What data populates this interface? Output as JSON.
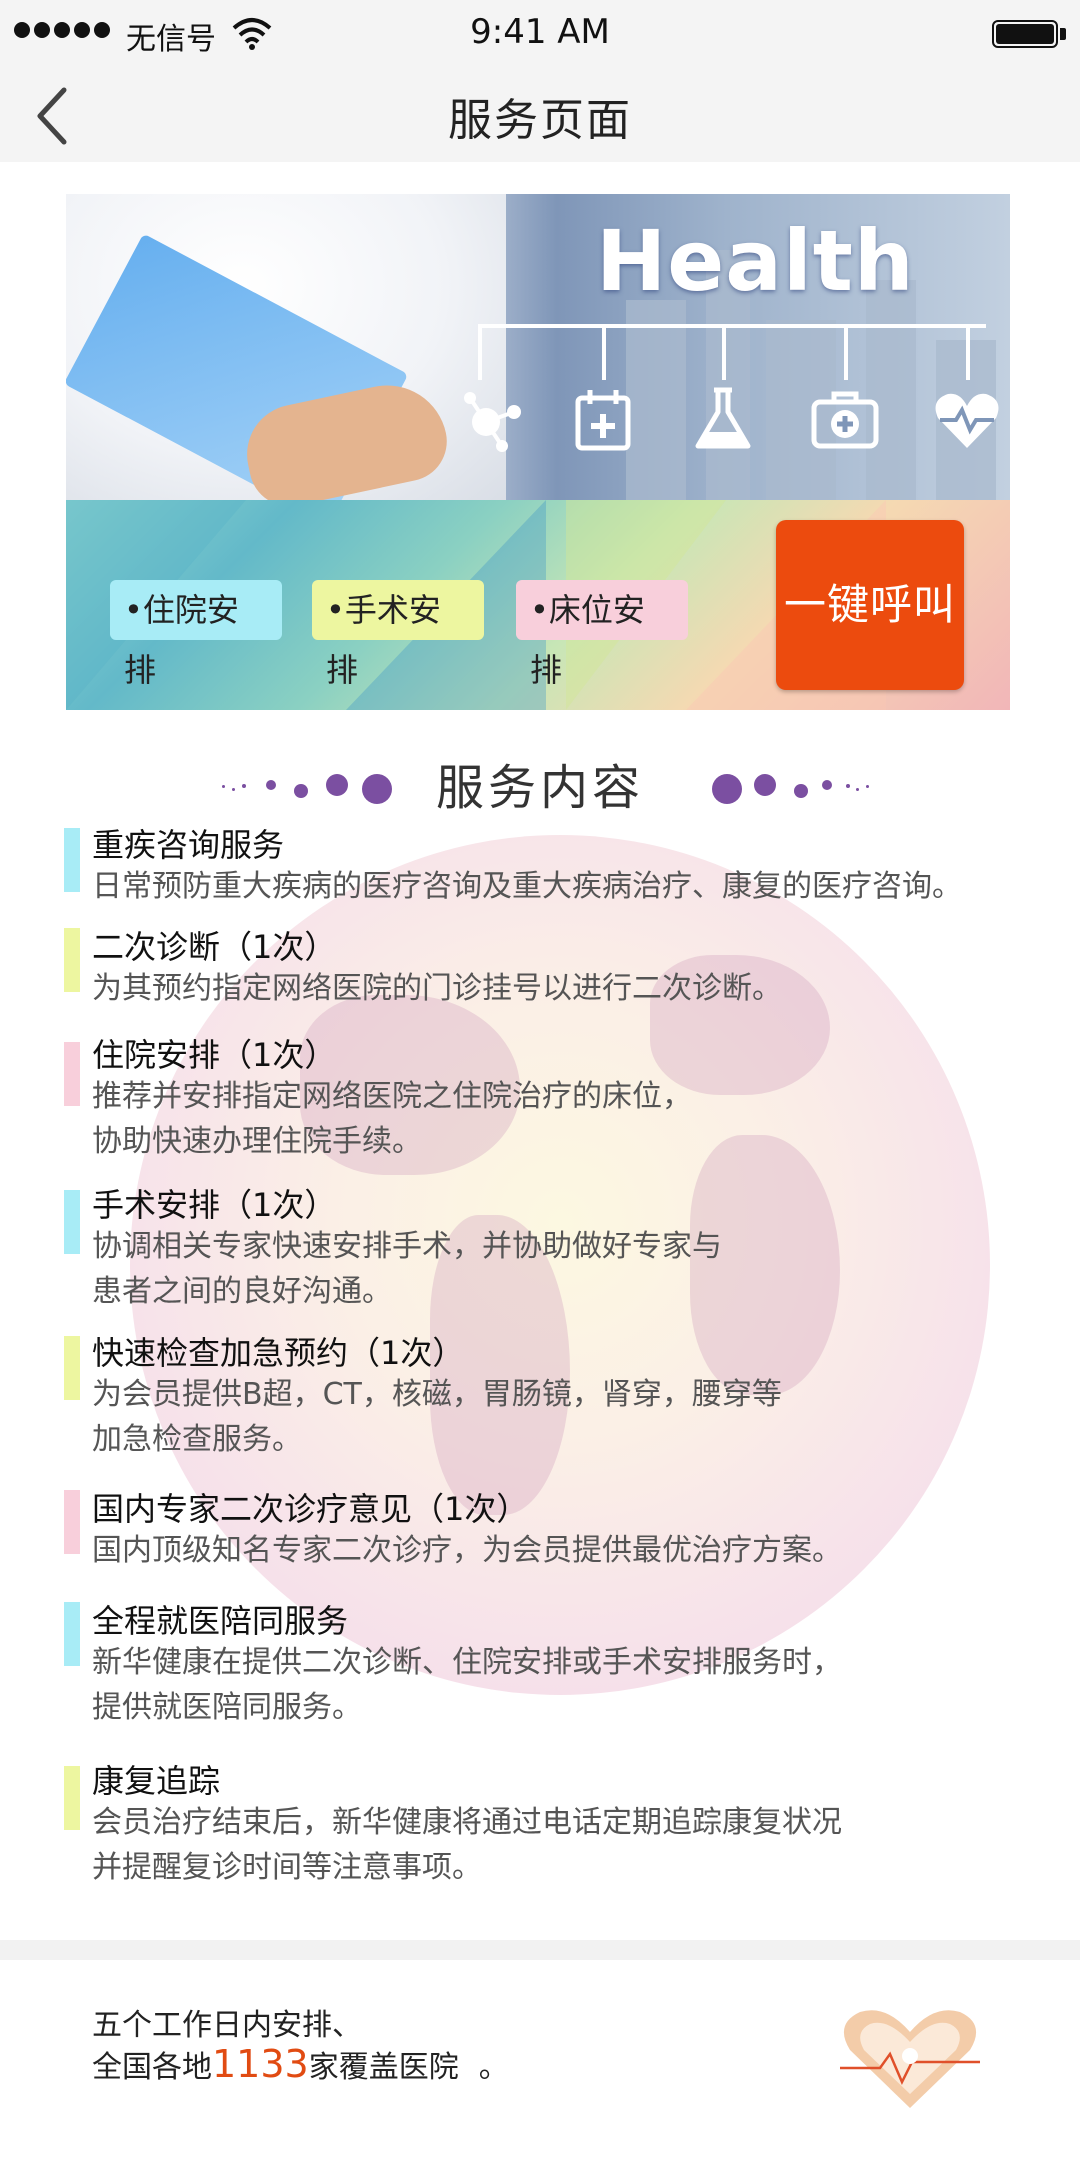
{
  "status_bar": {
    "carrier": "无信号",
    "time": "9:41 AM"
  },
  "nav": {
    "title": "服务页面"
  },
  "banner": {
    "headline": "Health",
    "tags": [
      "•住院安排",
      "•手术安排",
      "•床位安排"
    ],
    "call_button": "一键呼叫"
  },
  "section": {
    "title": "服务内容"
  },
  "services": [
    {
      "title": "重疾咨询服务",
      "desc": [
        "日常预防重大疾病的医疗咨询及重大疾病治疗、康复的医疗咨询。"
      ],
      "color": "#a8ecf6"
    },
    {
      "title": "二次诊断（1次）",
      "desc": [
        "为其预约指定网络医院的门诊挂号以进行二次诊断。"
      ],
      "color": "#edf6a0"
    },
    {
      "title": "住院安排（1次）",
      "desc": [
        "推荐并安排指定网络医院之住院治疗的床位，",
        "协助快速办理住院手续。"
      ],
      "color": "#f8cfdb"
    },
    {
      "title": "手术安排（1次）",
      "desc": [
        "协调相关专家快速安排手术，并协助做好专家与",
        "患者之间的良好沟通。"
      ],
      "color": "#a8ecf6"
    },
    {
      "title": "快速检查加急预约（1次）",
      "desc": [
        "为会员提供B超，CT，核磁，胃肠镜，肾穿，腰穿等",
        "加急检查服务。"
      ],
      "color": "#edf6a0"
    },
    {
      "title": "国内专家二次诊疗意见（1次）",
      "desc": [
        "国内顶级知名专家二次诊疗，为会员提供最优治疗方案。"
      ],
      "color": "#f8cfdb"
    },
    {
      "title": "全程就医陪同服务",
      "desc": [
        "新华健康在提供二次诊断、住院安排或手术安排服务时，",
        "提供就医陪同服务。"
      ],
      "color": "#a8ecf6"
    },
    {
      "title": "康复追踪",
      "desc": [
        "会员治疗结束后，新华健康将通过电话定期追踪康复状况",
        "并提醒复诊时间等注意事项。"
      ],
      "color": "#edf6a0"
    }
  ],
  "footer": {
    "line1": "五个工作日内安排、",
    "line2_prefix": "全国各地",
    "hospital_count": "1133",
    "line2_suffix": "家覆盖医院",
    "line2_end": "。"
  }
}
